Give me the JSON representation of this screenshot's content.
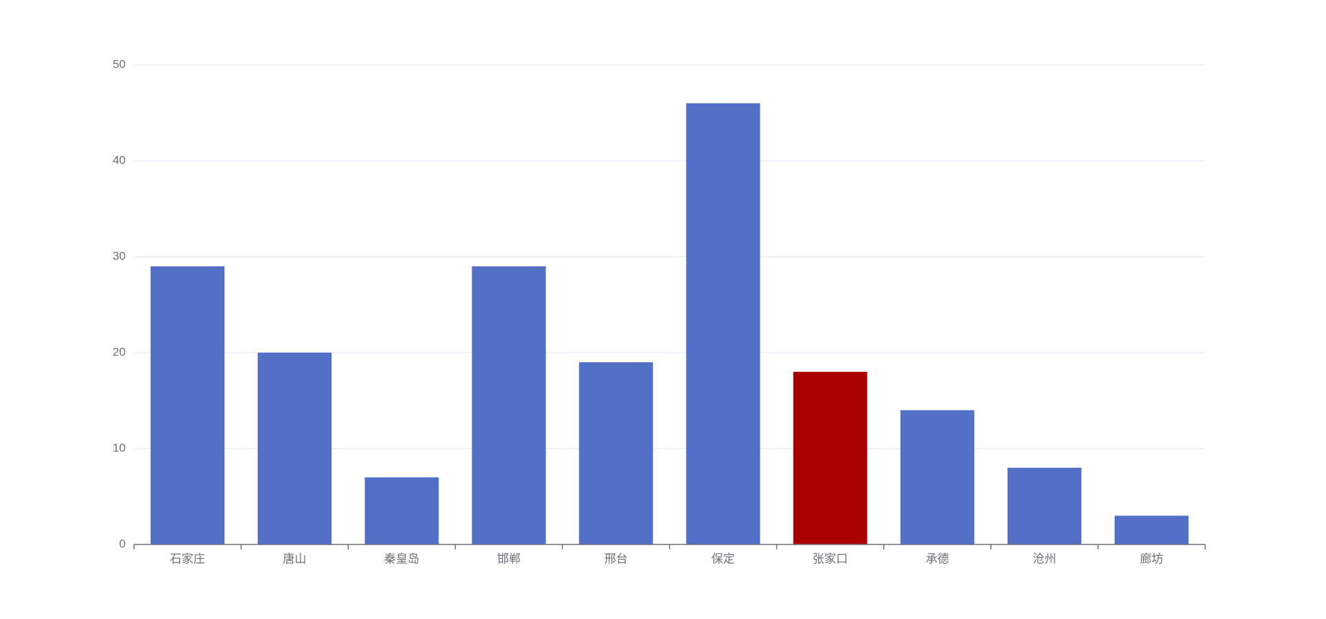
{
  "chart_data": {
    "type": "bar",
    "categories": [
      "石家庄",
      "唐山",
      "秦皇岛",
      "邯郸",
      "邢台",
      "保定",
      "张家口",
      "承德",
      "沧州",
      "廊坊"
    ],
    "values": [
      29,
      20,
      7,
      29,
      19,
      46,
      18,
      14,
      8,
      3
    ],
    "colors": [
      "#5470c6",
      "#5470c6",
      "#5470c6",
      "#5470c6",
      "#5470c6",
      "#5470c6",
      "#a90000",
      "#5470c6",
      "#5470c6",
      "#5470c6"
    ],
    "ylim": [
      0,
      50
    ],
    "yticks": [
      0,
      10,
      20,
      30,
      40,
      50
    ],
    "grid": true
  }
}
